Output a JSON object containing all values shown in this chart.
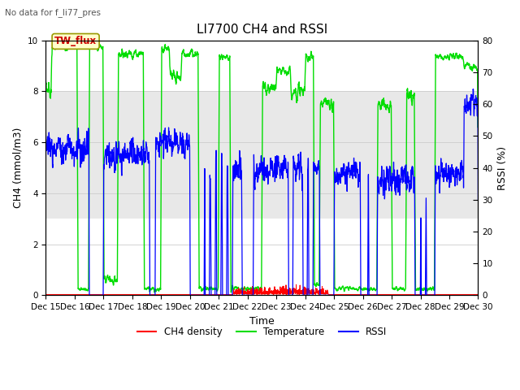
{
  "title": "LI7700 CH4 and RSSI",
  "subtitle": "No data for f_li77_pres",
  "ylabel_left": "CH4 (mmol/m3)",
  "ylabel_right": "RSSI (%)",
  "xlabel": "Time",
  "ylim_left": [
    0,
    10
  ],
  "ylim_right": [
    0,
    80
  ],
  "shaded_region": [
    3,
    8
  ],
  "shaded_color": "#e8e8e8",
  "annotation_text": "TW_flux",
  "background_color": "#ffffff",
  "xtick_labels": [
    "Dec 15",
    "Dec 16",
    "Dec 17",
    "Dec 18",
    "Dec 19",
    "Dec 20",
    "Dec 21",
    "Dec 22",
    "Dec 23",
    "Dec 24",
    "Dec 25",
    "Dec 26",
    "Dec 27",
    "Dec 28",
    "Dec 29",
    "Dec 30"
  ],
  "title_fontsize": 11,
  "axis_fontsize": 9,
  "tick_fontsize": 7.5
}
